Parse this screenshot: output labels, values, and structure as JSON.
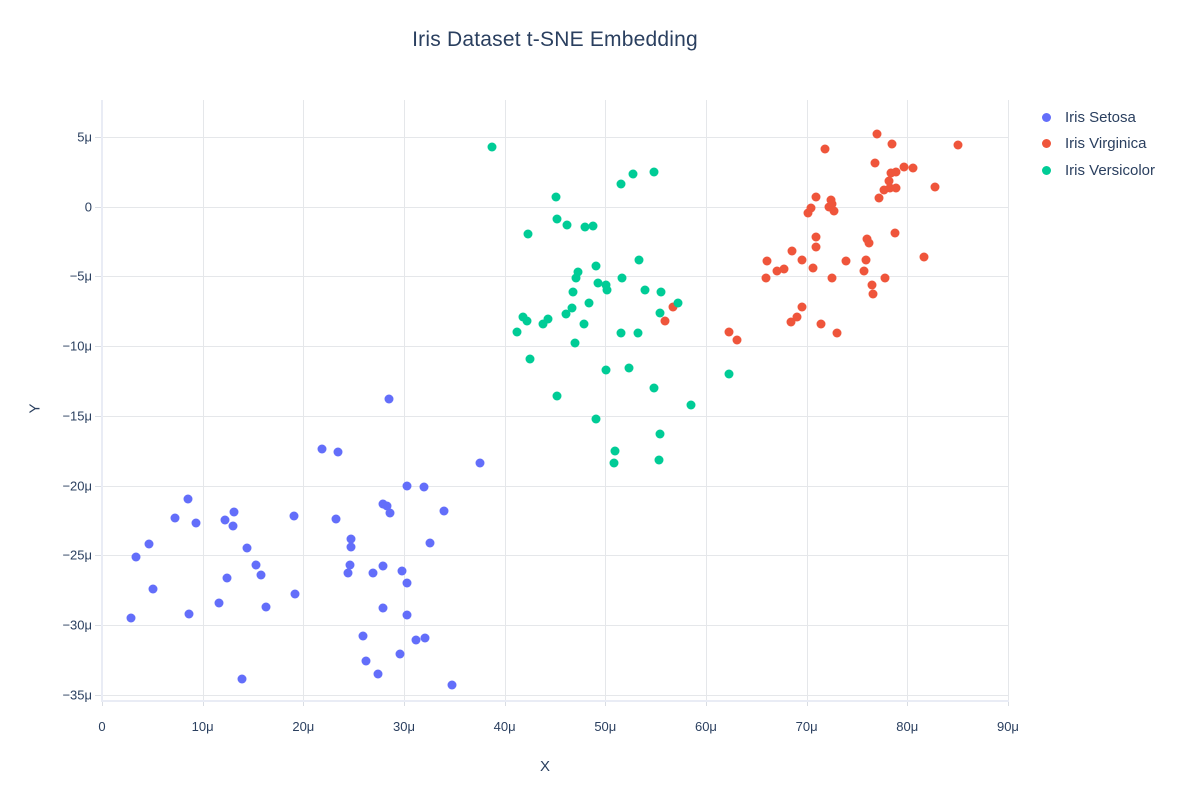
{
  "title": "Iris Dataset t-SNE Embedding",
  "legend": {
    "items": [
      {
        "label": "Iris Setosa",
        "color": "#636efa"
      },
      {
        "label": "Iris Virginica",
        "color": "#ef553b"
      },
      {
        "label": "Iris Versicolor",
        "color": "#00cc96"
      }
    ]
  },
  "colors": {
    "setosa": "#636efa",
    "virginica": "#ef553b",
    "versicolor": "#00cc96",
    "grid": "#e5e7ea",
    "axis_line": "#e9ecf5",
    "text": "#2a3f5f",
    "background": "#ffffff"
  },
  "chart_data": {
    "type": "scatter",
    "title": "Iris Dataset t-SNE Embedding",
    "xlabel": "X",
    "ylabel": "Y",
    "grid": true,
    "legend_position": "right",
    "xlim": [
      0,
      90.2
    ],
    "ylim": [
      -35.4,
      7.6
    ],
    "x_ticks": {
      "values": [
        0,
        10,
        20,
        30,
        40,
        50,
        60,
        70,
        80,
        90
      ],
      "labels": [
        "0",
        "10μ",
        "20μ",
        "30μ",
        "40μ",
        "50μ",
        "60μ",
        "70μ",
        "80μ",
        "90μ"
      ]
    },
    "y_ticks": {
      "values": [
        5,
        0,
        -5,
        -10,
        -15,
        -20,
        -25,
        -30,
        -35
      ],
      "labels": [
        "5μ",
        "0",
        "−5μ",
        "−10μ",
        "−15μ",
        "−20μ",
        "−25μ",
        "−30μ",
        "−35μ"
      ]
    },
    "series": [
      {
        "name": "Iris Setosa",
        "color": "#636efa",
        "points": [
          [
            2.9,
            -29.5
          ],
          [
            3.4,
            -25.1
          ],
          [
            4.7,
            -24.2
          ],
          [
            5.1,
            -27.4
          ],
          [
            7.3,
            -22.3
          ],
          [
            8.5,
            -21.0
          ],
          [
            8.6,
            -29.2
          ],
          [
            9.3,
            -22.7
          ],
          [
            11.6,
            -28.4
          ],
          [
            12.2,
            -22.5
          ],
          [
            12.4,
            -26.6
          ],
          [
            13.0,
            -22.9
          ],
          [
            13.1,
            -21.9
          ],
          [
            13.9,
            -33.9
          ],
          [
            14.4,
            -24.5
          ],
          [
            15.3,
            -25.7
          ],
          [
            15.8,
            -26.4
          ],
          [
            16.3,
            -28.7
          ],
          [
            19.1,
            -22.2
          ],
          [
            19.2,
            -27.8
          ],
          [
            21.9,
            -17.4
          ],
          [
            23.2,
            -22.4
          ],
          [
            23.4,
            -17.6
          ],
          [
            24.4,
            -26.3
          ],
          [
            24.6,
            -25.7
          ],
          [
            24.7,
            -23.8
          ],
          [
            24.7,
            -24.4
          ],
          [
            25.9,
            -30.8
          ],
          [
            26.2,
            -32.6
          ],
          [
            26.9,
            -26.3
          ],
          [
            27.4,
            -33.5
          ],
          [
            27.9,
            -21.3
          ],
          [
            27.9,
            -25.8
          ],
          [
            27.9,
            -28.8
          ],
          [
            28.3,
            -21.5
          ],
          [
            28.5,
            -13.8
          ],
          [
            28.6,
            -22.0
          ],
          [
            29.6,
            -32.1
          ],
          [
            29.8,
            -26.1
          ],
          [
            30.3,
            -20.0
          ],
          [
            30.3,
            -27.0
          ],
          [
            30.3,
            -29.3
          ],
          [
            31.2,
            -31.1
          ],
          [
            32.0,
            -20.1
          ],
          [
            32.1,
            -30.9
          ],
          [
            32.6,
            -24.1
          ],
          [
            34.0,
            -21.8
          ],
          [
            34.8,
            -34.3
          ],
          [
            37.6,
            -18.4
          ]
        ]
      },
      {
        "name": "Iris Virginica",
        "color": "#ef553b",
        "points": [
          [
            55.9,
            -8.2
          ],
          [
            56.7,
            -7.2
          ],
          [
            62.3,
            -9.0
          ],
          [
            63.1,
            -9.6
          ],
          [
            66.0,
            -5.1
          ],
          [
            66.1,
            -3.9
          ],
          [
            67.1,
            -4.6
          ],
          [
            67.8,
            -4.5
          ],
          [
            68.4,
            -8.3
          ],
          [
            68.5,
            -3.2
          ],
          [
            69.0,
            -7.9
          ],
          [
            69.5,
            -7.2
          ],
          [
            69.5,
            -3.8
          ],
          [
            70.1,
            -0.5
          ],
          [
            70.4,
            -0.1
          ],
          [
            70.6,
            -4.4
          ],
          [
            70.9,
            0.7
          ],
          [
            70.9,
            -2.2
          ],
          [
            70.9,
            -2.9
          ],
          [
            71.4,
            -8.4
          ],
          [
            71.8,
            4.1
          ],
          [
            72.2,
            0.0
          ],
          [
            72.4,
            0.5
          ],
          [
            72.5,
            0.2
          ],
          [
            72.7,
            -0.3
          ],
          [
            72.5,
            -5.1
          ],
          [
            73.0,
            -9.1
          ],
          [
            73.9,
            -3.9
          ],
          [
            75.9,
            -3.8
          ],
          [
            75.7,
            -4.6
          ],
          [
            76.0,
            -2.3
          ],
          [
            76.2,
            -2.6
          ],
          [
            76.6,
            -6.3
          ],
          [
            76.8,
            3.1
          ],
          [
            76.5,
            -5.6
          ],
          [
            77.0,
            5.2
          ],
          [
            77.2,
            0.6
          ],
          [
            77.7,
            1.2
          ],
          [
            77.8,
            -5.1
          ],
          [
            78.2,
            1.8
          ],
          [
            78.3,
            1.3
          ],
          [
            78.4,
            2.4
          ],
          [
            78.5,
            4.5
          ],
          [
            78.8,
            -1.9
          ],
          [
            78.9,
            1.3
          ],
          [
            78.9,
            2.5
          ],
          [
            79.7,
            2.8
          ],
          [
            80.6,
            2.75
          ],
          [
            81.7,
            -3.6
          ],
          [
            82.8,
            1.4
          ],
          [
            85.0,
            4.4
          ]
        ]
      },
      {
        "name": "Iris Versicolor",
        "color": "#00cc96",
        "points": [
          [
            38.7,
            4.3
          ],
          [
            41.2,
            -9.0
          ],
          [
            41.8,
            -7.9
          ],
          [
            42.2,
            -8.2
          ],
          [
            42.3,
            -2.0
          ],
          [
            42.5,
            -10.9
          ],
          [
            43.8,
            -8.4
          ],
          [
            44.3,
            -8.1
          ],
          [
            45.1,
            0.7
          ],
          [
            45.2,
            -0.9
          ],
          [
            45.2,
            -13.6
          ],
          [
            46.1,
            -7.7
          ],
          [
            46.2,
            -1.3
          ],
          [
            46.7,
            -7.3
          ],
          [
            46.8,
            -6.1
          ],
          [
            47.0,
            -9.8
          ],
          [
            47.1,
            -5.1
          ],
          [
            47.3,
            -4.7
          ],
          [
            48.0,
            -1.5
          ],
          [
            47.9,
            -8.4
          ],
          [
            48.4,
            -6.9
          ],
          [
            48.8,
            -1.4
          ],
          [
            49.1,
            -4.3
          ],
          [
            49.1,
            -15.2
          ],
          [
            49.3,
            -5.5
          ],
          [
            50.1,
            -5.6
          ],
          [
            50.1,
            -11.7
          ],
          [
            50.2,
            -6.0
          ],
          [
            50.9,
            -18.4
          ],
          [
            51.0,
            -17.5
          ],
          [
            51.6,
            1.6
          ],
          [
            51.7,
            -5.1
          ],
          [
            51.6,
            -9.1
          ],
          [
            52.4,
            -11.6
          ],
          [
            52.8,
            2.3
          ],
          [
            53.2,
            -9.1
          ],
          [
            53.3,
            -3.8
          ],
          [
            53.9,
            -6.0
          ],
          [
            54.8,
            2.5
          ],
          [
            54.8,
            -13.0
          ],
          [
            55.3,
            -18.2
          ],
          [
            55.4,
            -16.3
          ],
          [
            55.4,
            -7.6
          ],
          [
            55.5,
            -6.1
          ],
          [
            57.2,
            -6.9
          ],
          [
            58.5,
            -14.2
          ],
          [
            62.3,
            -12.0
          ]
        ]
      }
    ]
  }
}
